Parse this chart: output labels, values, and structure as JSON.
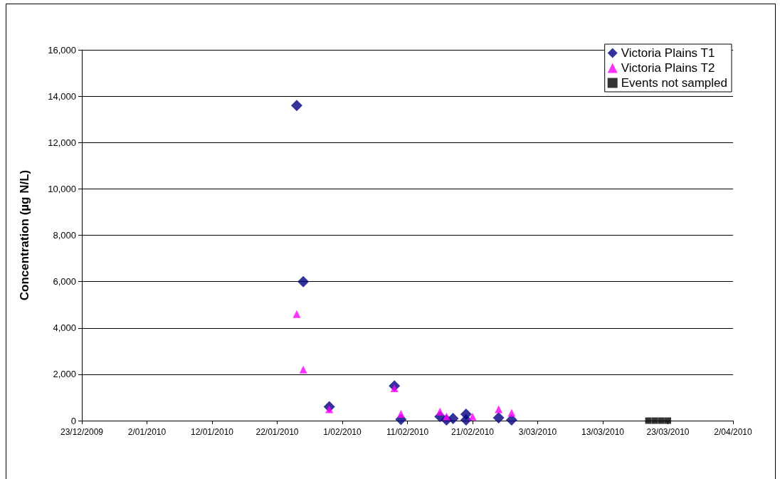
{
  "chart_data": {
    "type": "scatter",
    "ylabel": "Concentration (µg N/L)",
    "xlim": [
      "2009-12-23",
      "2010-04-02"
    ],
    "xticks": [
      {
        "value": "2009-12-23",
        "label": "23/12/2009"
      },
      {
        "value": "2010-01-02",
        "label": "2/01/2010"
      },
      {
        "value": "2010-01-12",
        "label": "12/01/2010"
      },
      {
        "value": "2010-01-22",
        "label": "22/01/2010"
      },
      {
        "value": "2010-02-01",
        "label": "1/02/2010"
      },
      {
        "value": "2010-02-11",
        "label": "11/02/2010"
      },
      {
        "value": "2010-02-21",
        "label": "21/02/2010"
      },
      {
        "value": "2010-03-03",
        "label": "3/03/2010"
      },
      {
        "value": "2010-03-13",
        "label": "13/03/2010"
      },
      {
        "value": "2010-03-23",
        "label": "23/03/2010"
      },
      {
        "value": "2010-04-02",
        "label": "2/04/2010"
      }
    ],
    "ylim": [
      0,
      16000
    ],
    "yticks": [
      0,
      {
        "value": 2000,
        "label": "2,000"
      },
      {
        "value": 4000,
        "label": "4,000"
      },
      {
        "value": 6000,
        "label": "6,000"
      },
      {
        "value": 8000,
        "label": "8,000"
      },
      {
        "value": 10000,
        "label": "10,000"
      },
      {
        "value": 12000,
        "label": "12,000"
      },
      {
        "value": 14000,
        "label": "14,000"
      },
      {
        "value": 16000,
        "label": "16,000"
      }
    ],
    "grid": "y",
    "legend": "top right",
    "series": [
      {
        "name": "Victoria Plains T1",
        "color": "#000080",
        "marker": "diamond",
        "x": [
          "2010-01-25",
          "2010-01-26",
          "2010-01-30",
          "2010-02-09",
          "2010-02-10",
          "2010-02-16",
          "2010-02-17",
          "2010-02-18",
          "2010-02-20",
          "2010-02-20",
          "2010-02-25",
          "2010-02-27"
        ],
        "values": [
          13600,
          6000,
          600,
          1500,
          50,
          180,
          30,
          90,
          280,
          30,
          120,
          30
        ]
      },
      {
        "name": "Victoria Plains T2",
        "color": "#ff00ff",
        "marker": "triangle",
        "x": [
          "2010-01-25",
          "2010-01-26",
          "2010-01-30",
          "2010-02-09",
          "2010-02-10",
          "2010-02-16",
          "2010-02-17",
          "2010-02-21",
          "2010-02-25",
          "2010-02-27"
        ],
        "values": [
          4600,
          2200,
          490,
          1400,
          290,
          390,
          180,
          180,
          490,
          340
        ]
      },
      {
        "name": "Events not sampled",
        "color": "#000000",
        "marker": "square",
        "x": [
          "2010-03-20",
          "2010-03-21",
          "2010-03-22",
          "2010-03-23"
        ],
        "values": [
          0,
          0,
          0,
          0
        ]
      }
    ]
  }
}
